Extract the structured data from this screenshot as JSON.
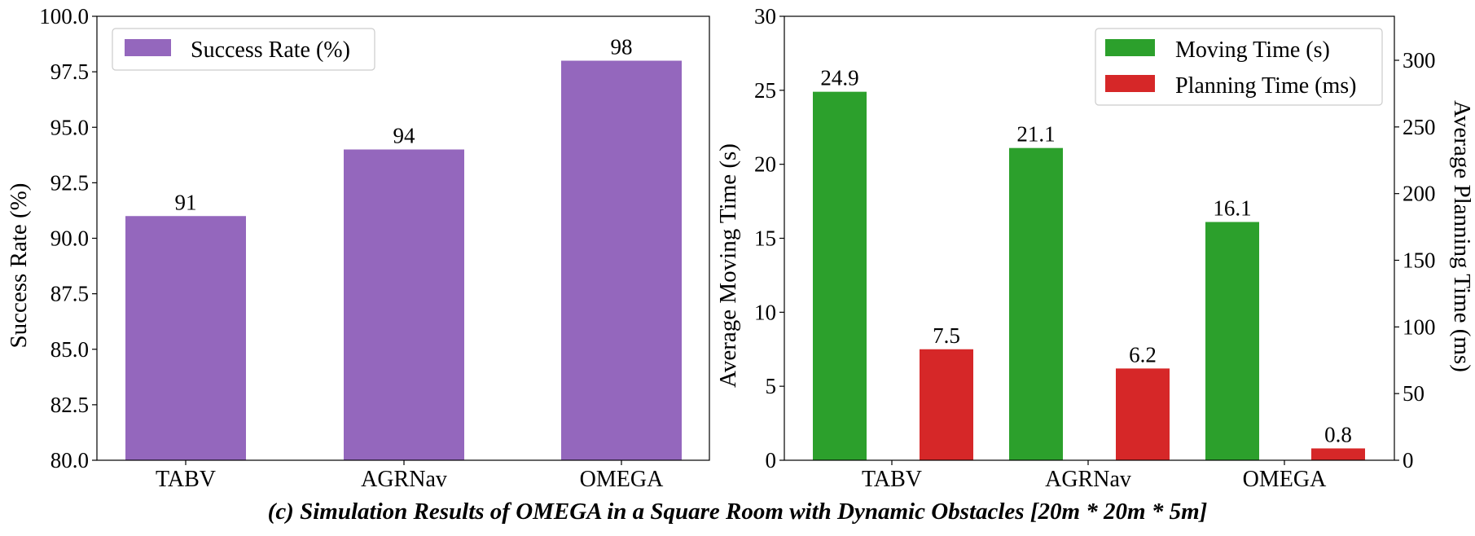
{
  "caption": "(c) Simulation Results of OMEGA in a Square Room with Dynamic Obstacles [20m * 20m * 5m]",
  "chart_data": [
    {
      "type": "bar",
      "categories": [
        "TABV",
        "AGRNav",
        "OMEGA"
      ],
      "series": [
        {
          "name": "Success Rate (%)",
          "values": [
            91,
            94,
            98
          ],
          "color": "#9467bd"
        }
      ],
      "data_labels": [
        "91",
        "94",
        "98"
      ],
      "title": "",
      "xlabel": "",
      "ylabel": "Success Rate (%)",
      "ylim": [
        80,
        100
      ],
      "yticks": [
        "80.0",
        "82.5",
        "85.0",
        "87.5",
        "90.0",
        "92.5",
        "95.0",
        "97.5",
        "100.0"
      ],
      "legend_position": "top-left",
      "grid": false
    },
    {
      "type": "bar",
      "categories": [
        "TABV",
        "AGRNav",
        "OMEGA"
      ],
      "series": [
        {
          "name": "Moving Time (s)",
          "values": [
            24.9,
            21.1,
            16.1
          ],
          "color": "#2ca02c",
          "axis": "left"
        },
        {
          "name": "Planning Time (ms)",
          "values": [
            7.5,
            6.2,
            0.8
          ],
          "color": "#d62728",
          "axis": "left"
        }
      ],
      "data_labels": {
        "moving": [
          "24.9",
          "21.1",
          "16.1"
        ],
        "planning": [
          "7.5",
          "6.2",
          "0.8"
        ]
      },
      "title": "",
      "xlabel": "",
      "ylabel": "Average Moving Time (s)",
      "ylabel_right": "Average Planning Time (ms)",
      "ylim": [
        0,
        30
      ],
      "ylim_right": [
        0,
        333
      ],
      "yticks": [
        "0",
        "5",
        "10",
        "15",
        "20",
        "25",
        "30"
      ],
      "yticks_right": [
        "0",
        "50",
        "100",
        "150",
        "200",
        "250",
        "300"
      ],
      "legend_position": "top-right",
      "grid": false
    }
  ]
}
